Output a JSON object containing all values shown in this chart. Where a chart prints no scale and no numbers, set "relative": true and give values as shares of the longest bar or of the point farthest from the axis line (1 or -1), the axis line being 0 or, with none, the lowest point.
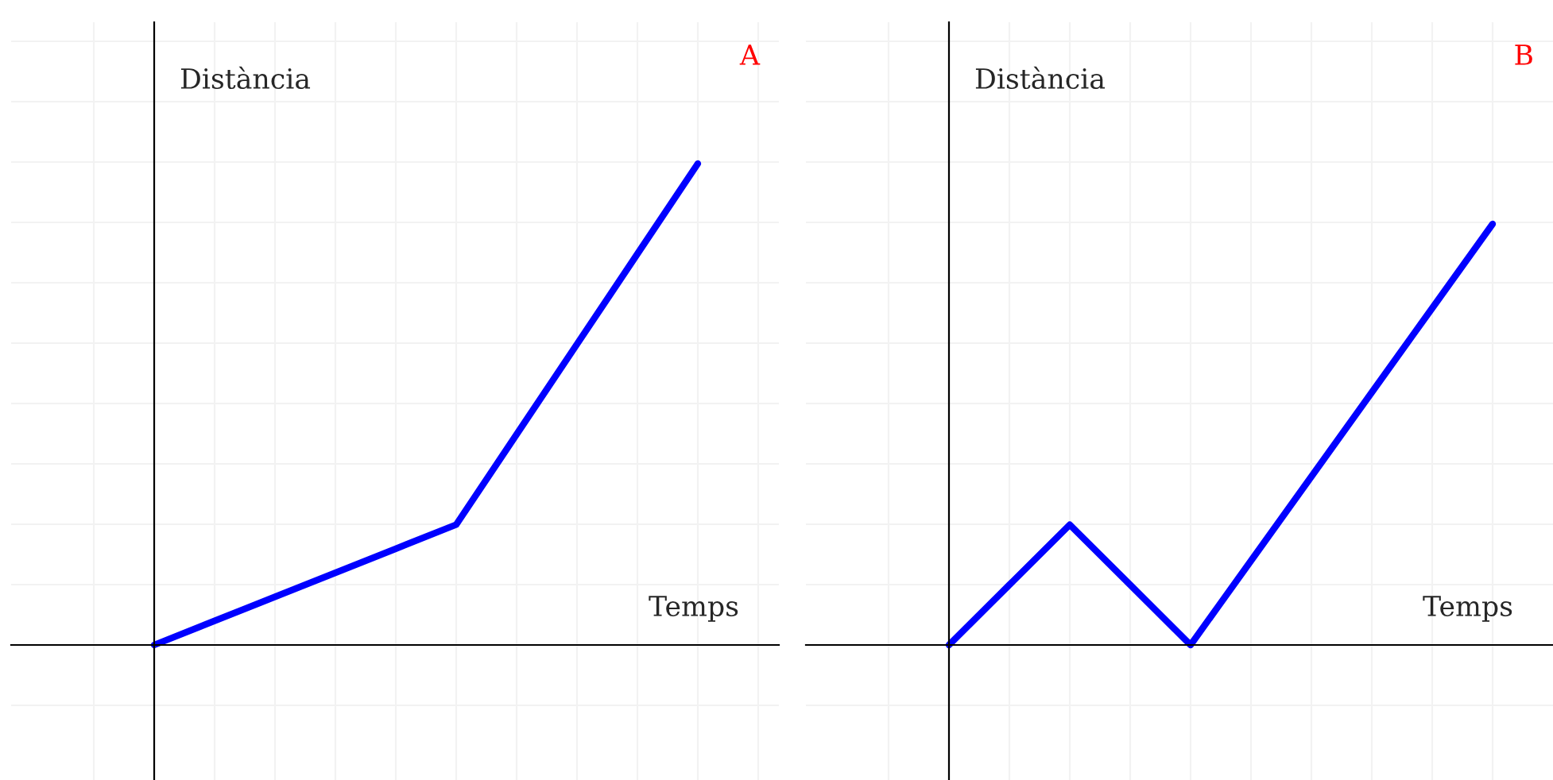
{
  "chart_data": [
    {
      "type": "line",
      "title": "A",
      "xlabel": "Temps",
      "ylabel": "Distància",
      "relative": true,
      "grid": true,
      "tick_labels": false,
      "categories": [
        null,
        null,
        null,
        null,
        null,
        null,
        null,
        null,
        null,
        null
      ],
      "series": [
        {
          "color": "#0000ff",
          "values": [
            0,
            0.05,
            0.1,
            0.15,
            0.2,
            0.25,
            0.4375,
            0.625,
            0.8125,
            1
          ]
        }
      ]
    },
    {
      "type": "line",
      "title": "B",
      "xlabel": "Temps",
      "ylabel": "Distància",
      "relative": true,
      "grid": true,
      "tick_labels": false,
      "categories": [
        null,
        null,
        null,
        null,
        null,
        null,
        null,
        null,
        null,
        null
      ],
      "series": [
        {
          "color": "#0000ff",
          "values": [
            0,
            0.1429,
            0.2857,
            0.1429,
            0,
            0.2,
            0.4,
            0.6,
            0.8,
            1
          ]
        }
      ]
    }
  ]
}
